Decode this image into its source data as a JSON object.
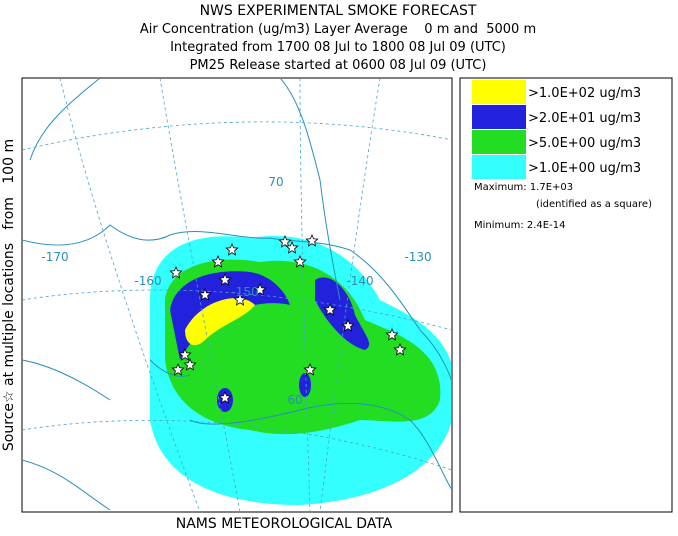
{
  "header": {
    "title": "NWS EXPERIMENTAL SMOKE FORECAST",
    "lines": [
      "Air Concentration (ug/m3) Layer Average    0 m and  5000 m",
      "Integrated from 1700 08 Jul to 1800 08 Jul 09 (UTC)",
      "PM25 Release started at 0600 08 Jul 09 (UTC)"
    ]
  },
  "side_label": "Source☆ at multiple locations   from   100 m",
  "map": {
    "grid_labels": [
      "-170",
      "-160",
      "-150",
      "-140",
      "-130",
      "70",
      "60"
    ]
  },
  "legend": {
    "items": [
      {
        "label": ">1.0E+02 ug/m3",
        "color": "#ffff00"
      },
      {
        "label": ">2.0E+01 ug/m3",
        "color": "#2222dd"
      },
      {
        "label": ">5.0E+00 ug/m3",
        "color": "#22dd22"
      },
      {
        "label": ">1.0E+00 ug/m3",
        "color": "#33ffff"
      }
    ],
    "maximum": "Maximum: 1.7E+03",
    "max_note": "(identified as a square)",
    "minimum": "Minimum: 2.4E-14"
  },
  "footer": "NAMS METEOROLOGICAL DATA"
}
